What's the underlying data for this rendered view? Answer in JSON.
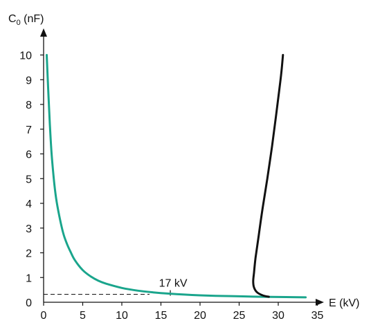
{
  "chart_data": {
    "type": "line",
    "xlabel": "E (kV)",
    "ylabel_main": "C",
    "ylabel_sub": "0",
    "ylabel_unit": " (nF)",
    "x_ticks": [
      "0",
      "5",
      "10",
      "15",
      "20",
      "25",
      "30",
      "35"
    ],
    "y_ticks": [
      "0",
      "1",
      "2",
      "3",
      "4",
      "5",
      "6",
      "7",
      "8",
      "9",
      "10"
    ],
    "xlim": [
      0,
      37
    ],
    "ylim": [
      0,
      10
    ],
    "grid": false,
    "annotation": {
      "text": "17 kV",
      "x": 16.2,
      "y": 0.32
    },
    "series": [
      {
        "color": "#1aa58c",
        "x": [
          0.4,
          0.6,
          0.8,
          1.0,
          1.3,
          1.6,
          2.0,
          2.5,
          3.0,
          3.5,
          4.0,
          5.0,
          6.0,
          7.0,
          8.0,
          10.0,
          12.0,
          14.0,
          16.0,
          18.0,
          20.0,
          22.0,
          25.0,
          28.0,
          31.0,
          33.5
        ],
        "y": [
          10.0,
          8.5,
          7.2,
          6.1,
          5.0,
          4.2,
          3.5,
          2.8,
          2.35,
          2.0,
          1.7,
          1.3,
          1.05,
          0.87,
          0.75,
          0.58,
          0.47,
          0.4,
          0.35,
          0.31,
          0.28,
          0.26,
          0.24,
          0.22,
          0.21,
          0.2
        ]
      },
      {
        "color": "#111111",
        "x": [
          28.8,
          28.0,
          27.3,
          26.9,
          26.8,
          26.9,
          27.1,
          27.5,
          28.0,
          28.6,
          29.2,
          29.7,
          30.1,
          30.4,
          30.6
        ],
        "y": [
          0.22,
          0.28,
          0.4,
          0.6,
          0.85,
          1.2,
          1.8,
          2.7,
          3.8,
          5.0,
          6.3,
          7.5,
          8.5,
          9.3,
          10.0
        ]
      }
    ]
  }
}
